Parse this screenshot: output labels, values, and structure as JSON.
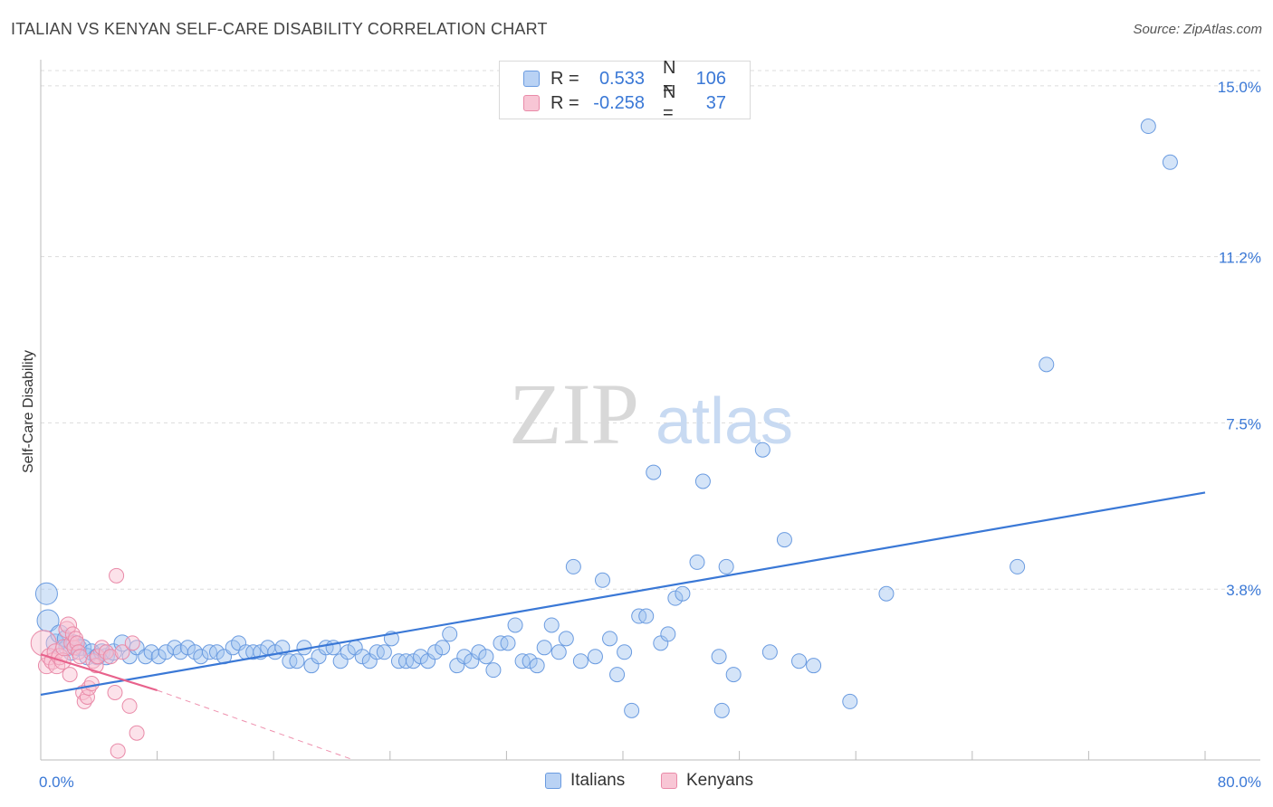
{
  "title": "ITALIAN VS KENYAN SELF-CARE DISABILITY CORRELATION CHART",
  "source": "Source: ZipAtlas.com",
  "watermark": {
    "zip": "ZIP",
    "atlas": "atlas"
  },
  "legend": {
    "rows": [
      {
        "name": "Italians",
        "r_label": "R =",
        "r_value": "0.533",
        "n_label": "N =",
        "n_value": "106",
        "color": "#6a9be0",
        "fill": "#b9d2f4"
      },
      {
        "name": "Kenyans",
        "r_label": "R =",
        "r_value": "-0.258",
        "n_label": "N =",
        "n_value": "37",
        "color": "#e98aa8",
        "fill": "#f8c6d5"
      }
    ]
  },
  "chart_data": {
    "type": "scatter",
    "title": "ITALIAN VS KENYAN SELF-CARE DISABILITY CORRELATION CHART",
    "xlabel": "",
    "ylabel": "Self-Care Disability",
    "xlim": [
      0,
      80
    ],
    "ylim": [
      0,
      15.5
    ],
    "x_tick_labels": [
      {
        "value": 0,
        "label": "0.0%"
      },
      {
        "value": 80,
        "label": "80.0%"
      }
    ],
    "y_tick_labels": [
      {
        "value": 3.8,
        "label": "3.8%"
      },
      {
        "value": 7.5,
        "label": "7.5%"
      },
      {
        "value": 11.2,
        "label": "11.2%"
      },
      {
        "value": 15.0,
        "label": "15.0%"
      }
    ],
    "x_minor_ticks": [
      8,
      16,
      24,
      32,
      40,
      48,
      56,
      64,
      72,
      80
    ],
    "series": [
      {
        "name": "Italians",
        "color": "#3a78d6",
        "trendline": {
          "x": [
            0,
            80
          ],
          "y": [
            1.45,
            5.95
          ]
        },
        "points": [
          [
            0.4,
            3.7,
            12
          ],
          [
            0.5,
            3.1,
            12
          ],
          [
            1.0,
            2.6,
            10
          ],
          [
            1.3,
            2.8,
            10
          ],
          [
            1.7,
            2.7,
            9
          ],
          [
            1.8,
            2.5,
            9
          ],
          [
            2.1,
            2.4,
            9
          ],
          [
            2.3,
            2.6,
            9
          ],
          [
            2.6,
            2.5,
            9
          ],
          [
            2.9,
            2.5,
            9
          ],
          [
            3.2,
            2.3,
            9
          ],
          [
            3.5,
            2.4,
            9
          ],
          [
            3.9,
            2.3,
            9
          ],
          [
            4.2,
            2.4,
            9
          ],
          [
            4.5,
            2.3,
            9
          ],
          [
            5.0,
            2.4,
            9
          ],
          [
            5.6,
            2.6,
            9
          ],
          [
            6.1,
            2.3,
            8
          ],
          [
            6.6,
            2.5,
            8
          ],
          [
            7.2,
            2.3,
            8
          ],
          [
            7.6,
            2.4,
            8
          ],
          [
            8.1,
            2.3,
            8
          ],
          [
            8.6,
            2.4,
            8
          ],
          [
            9.2,
            2.5,
            8
          ],
          [
            9.6,
            2.4,
            8
          ],
          [
            10.1,
            2.5,
            8
          ],
          [
            10.6,
            2.4,
            8
          ],
          [
            11.0,
            2.3,
            8
          ],
          [
            11.6,
            2.4,
            8
          ],
          [
            12.1,
            2.4,
            8
          ],
          [
            12.6,
            2.3,
            8
          ],
          [
            13.2,
            2.5,
            8
          ],
          [
            13.6,
            2.6,
            8
          ],
          [
            14.1,
            2.4,
            8
          ],
          [
            14.6,
            2.4,
            8
          ],
          [
            15.1,
            2.4,
            8
          ],
          [
            15.6,
            2.5,
            8
          ],
          [
            16.1,
            2.4,
            8
          ],
          [
            16.6,
            2.5,
            8
          ],
          [
            17.1,
            2.2,
            8
          ],
          [
            17.6,
            2.2,
            8
          ],
          [
            18.1,
            2.5,
            8
          ],
          [
            18.6,
            2.1,
            8
          ],
          [
            19.1,
            2.3,
            8
          ],
          [
            19.6,
            2.5,
            8
          ],
          [
            20.1,
            2.5,
            8
          ],
          [
            20.6,
            2.2,
            8
          ],
          [
            21.1,
            2.4,
            8
          ],
          [
            21.6,
            2.5,
            8
          ],
          [
            22.1,
            2.3,
            8
          ],
          [
            22.6,
            2.2,
            8
          ],
          [
            23.1,
            2.4,
            8
          ],
          [
            23.6,
            2.4,
            8
          ],
          [
            24.1,
            2.7,
            8
          ],
          [
            24.6,
            2.2,
            8
          ],
          [
            25.1,
            2.2,
            8
          ],
          [
            25.6,
            2.2,
            8
          ],
          [
            26.1,
            2.3,
            8
          ],
          [
            26.6,
            2.2,
            8
          ],
          [
            27.1,
            2.4,
            8
          ],
          [
            27.6,
            2.5,
            8
          ],
          [
            28.1,
            2.8,
            8
          ],
          [
            28.6,
            2.1,
            8
          ],
          [
            29.1,
            2.3,
            8
          ],
          [
            29.6,
            2.2,
            8
          ],
          [
            30.1,
            2.4,
            8
          ],
          [
            30.6,
            2.3,
            8
          ],
          [
            31.1,
            2.0,
            8
          ],
          [
            31.6,
            2.6,
            8
          ],
          [
            32.1,
            2.6,
            8
          ],
          [
            32.6,
            3.0,
            8
          ],
          [
            33.1,
            2.2,
            8
          ],
          [
            33.6,
            2.2,
            8
          ],
          [
            34.1,
            2.1,
            8
          ],
          [
            34.6,
            2.5,
            8
          ],
          [
            35.1,
            3.0,
            8
          ],
          [
            35.6,
            2.4,
            8
          ],
          [
            36.1,
            2.7,
            8
          ],
          [
            37.1,
            2.2,
            8
          ],
          [
            38.1,
            2.3,
            8
          ],
          [
            39.1,
            2.7,
            8
          ],
          [
            39.6,
            1.9,
            8
          ],
          [
            40.1,
            2.4,
            8
          ],
          [
            40.6,
            1.1,
            8
          ],
          [
            41.1,
            3.2,
            8
          ],
          [
            41.6,
            3.2,
            8
          ],
          [
            42.1,
            6.4,
            8
          ],
          [
            42.6,
            2.6,
            8
          ],
          [
            43.1,
            2.8,
            8
          ],
          [
            43.6,
            3.6,
            8
          ],
          [
            44.1,
            3.7,
            8
          ],
          [
            45.1,
            4.4,
            8
          ],
          [
            45.5,
            6.2,
            8
          ],
          [
            46.6,
            2.3,
            8
          ],
          [
            46.8,
            1.1,
            8
          ],
          [
            47.1,
            4.3,
            8
          ],
          [
            47.6,
            1.9,
            8
          ],
          [
            49.6,
            6.9,
            8
          ],
          [
            50.1,
            2.4,
            8
          ],
          [
            51.1,
            4.9,
            8
          ],
          [
            52.1,
            2.2,
            8
          ],
          [
            53.1,
            2.1,
            8
          ],
          [
            55.6,
            1.3,
            8
          ],
          [
            58.1,
            3.7,
            8
          ],
          [
            67.1,
            4.3,
            8
          ],
          [
            69.1,
            8.8,
            8
          ],
          [
            76.1,
            14.1,
            8
          ],
          [
            77.6,
            13.3,
            8
          ],
          [
            36.6,
            4.3,
            8
          ],
          [
            38.6,
            4.0,
            8
          ]
        ]
      },
      {
        "name": "Kenyans",
        "color": "#e8628c",
        "trendline": {
          "x": [
            0,
            8
          ],
          "y": [
            2.35,
            1.55
          ]
        },
        "trendline_extension": {
          "x": [
            8,
            21.5
          ],
          "y": [
            1.55,
            0
          ]
        },
        "points": [
          [
            0.2,
            2.6,
            14
          ],
          [
            0.4,
            2.1,
            9
          ],
          [
            0.6,
            2.3,
            9
          ],
          [
            0.8,
            2.2,
            9
          ],
          [
            1.0,
            2.4,
            9
          ],
          [
            1.1,
            2.1,
            9
          ],
          [
            1.3,
            2.3,
            9
          ],
          [
            1.5,
            2.2,
            9
          ],
          [
            1.6,
            2.5,
            9
          ],
          [
            1.8,
            2.9,
            9
          ],
          [
            1.9,
            3.0,
            9
          ],
          [
            2.1,
            2.6,
            8
          ],
          [
            2.2,
            2.8,
            8
          ],
          [
            2.3,
            2.5,
            8
          ],
          [
            2.4,
            2.7,
            8
          ],
          [
            2.5,
            2.6,
            8
          ],
          [
            2.6,
            2.4,
            8
          ],
          [
            2.7,
            2.3,
            8
          ],
          [
            2.0,
            1.9,
            8
          ],
          [
            2.9,
            1.5,
            8
          ],
          [
            3.0,
            1.3,
            8
          ],
          [
            3.2,
            1.4,
            8
          ],
          [
            3.3,
            1.6,
            8
          ],
          [
            3.5,
            1.7,
            8
          ],
          [
            3.6,
            2.2,
            8
          ],
          [
            3.8,
            2.1,
            8
          ],
          [
            3.9,
            2.3,
            8
          ],
          [
            4.2,
            2.5,
            8
          ],
          [
            4.5,
            2.4,
            8
          ],
          [
            4.8,
            2.3,
            8
          ],
          [
            5.1,
            1.5,
            8
          ],
          [
            5.3,
            0.2,
            8
          ],
          [
            5.6,
            2.4,
            8
          ],
          [
            5.2,
            4.1,
            8
          ],
          [
            6.1,
            1.2,
            8
          ],
          [
            6.3,
            2.6,
            8
          ],
          [
            6.6,
            0.6,
            8
          ]
        ]
      }
    ]
  },
  "bottom_legend": {
    "italians": "Italians",
    "kenyans": "Kenyans"
  }
}
